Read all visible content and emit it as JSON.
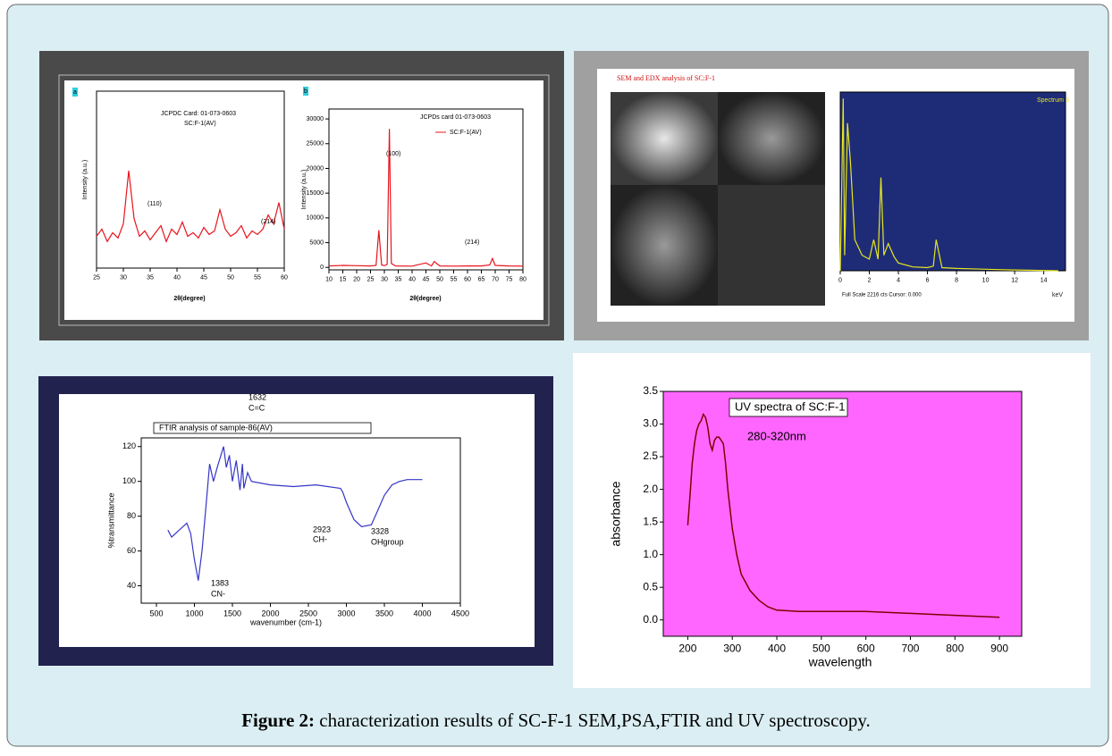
{
  "caption": {
    "label": "Figure 2:",
    "text": "characterization results of SC-F-1 SEM,PSA,FTIR and  UV spectroscopy."
  },
  "chart_data": [
    {
      "type": "line",
      "panel_label": "a",
      "xlabel": "2θ(degree)",
      "ylabel": "Intensity (a.u.)",
      "color": "#e8141c",
      "annotations": [
        "JCPDC Card: 01-073-0603",
        "SC:F-1(AV)",
        "(110)",
        "(214)"
      ],
      "x": [
        25,
        26,
        27,
        28,
        29,
        30,
        31,
        32,
        33,
        34,
        35,
        36,
        37,
        38,
        39,
        40,
        41,
        42,
        43,
        44,
        45,
        46,
        47,
        48,
        49,
        50,
        51,
        52,
        53,
        54,
        55,
        56,
        57,
        58,
        59,
        60
      ],
      "values": [
        18,
        22,
        15,
        20,
        17,
        25,
        55,
        28,
        18,
        21,
        16,
        20,
        24,
        15,
        22,
        19,
        26,
        18,
        20,
        17,
        23,
        19,
        21,
        33,
        22,
        18,
        20,
        24,
        17,
        21,
        19,
        22,
        30,
        25,
        37,
        22
      ],
      "xlim": [
        25,
        60
      ],
      "xticks": [
        25,
        30,
        35,
        40,
        45,
        50,
        55,
        60
      ],
      "ylim": [
        0,
        100
      ]
    },
    {
      "type": "line",
      "panel_label": "b",
      "xlabel": "2θ(degree)",
      "ylabel": "Intensity (a.u.)",
      "color": "#e8141c",
      "annotations": [
        "JCPDs card 01-073-0603",
        "(100)",
        "(214)"
      ],
      "series_name": "SC:F-1(AV)",
      "x": [
        10,
        15,
        20,
        25,
        27,
        28,
        29,
        30,
        31,
        31.8,
        32.5,
        34,
        40,
        45,
        47,
        48,
        50,
        55,
        60,
        65,
        68,
        69,
        70,
        75,
        80
      ],
      "values": [
        300,
        400,
        350,
        300,
        400,
        7500,
        500,
        350,
        600,
        28000,
        800,
        300,
        250,
        900,
        300,
        1200,
        300,
        250,
        300,
        300,
        500,
        1800,
        400,
        300,
        250
      ],
      "xlim": [
        10,
        80
      ],
      "xticks": [
        10,
        15,
        20,
        25,
        30,
        35,
        40,
        45,
        50,
        55,
        60,
        65,
        70,
        75,
        80
      ],
      "ylim": [
        -500,
        32000
      ],
      "yticks": [
        0,
        5000,
        10000,
        15000,
        20000,
        25000,
        30000
      ]
    },
    {
      "type": "line",
      "title": "SEM and EDX analysis of SC:F-1",
      "legend": "Spectrum 3",
      "footer": "Full Scale 2216 cts Cursor: 0.000",
      "xlabel": "keV",
      "color": "#e6e61e",
      "plot_background": "#1e2c78",
      "x": [
        0,
        0.2,
        0.3,
        0.5,
        0.7,
        1,
        1.5,
        2,
        2.3,
        2.6,
        2.8,
        3,
        3.3,
        3.7,
        4,
        5,
        6,
        6.4,
        6.6,
        7,
        8,
        10,
        12,
        15
      ],
      "values": [
        0,
        2216,
        200,
        1900,
        1400,
        400,
        200,
        150,
        400,
        150,
        1200,
        200,
        350,
        180,
        100,
        50,
        40,
        60,
        400,
        40,
        30,
        20,
        10,
        0
      ],
      "xlim": [
        0,
        15.5
      ],
      "xticks": [
        0,
        2,
        4,
        6,
        8,
        10,
        12,
        14
      ],
      "ylim": [
        0,
        2300
      ]
    },
    {
      "type": "line",
      "title": "FTIR analysis of sample-86(AV)",
      "xlabel": "wavenumber (cm-1)",
      "ylabel": "%transmittance",
      "color": "#3535c8",
      "annotations": [
        "1632",
        "C=C",
        "1383",
        "CN-",
        "2923",
        "CH-",
        "3328",
        "OHgroup"
      ],
      "x": [
        650,
        700,
        800,
        900,
        950,
        1000,
        1050,
        1100,
        1150,
        1200,
        1250,
        1300,
        1383,
        1420,
        1460,
        1500,
        1550,
        1600,
        1632,
        1650,
        1700,
        1750,
        2000,
        2300,
        2600,
        2923,
        2950,
        3000,
        3100,
        3200,
        3328,
        3400,
        3500,
        3600,
        3700,
        3800,
        4000
      ],
      "values": [
        72,
        68,
        72,
        76,
        70,
        55,
        43,
        60,
        85,
        110,
        100,
        108,
        120,
        108,
        115,
        100,
        112,
        95,
        110,
        96,
        105,
        100,
        98,
        97,
        98,
        96,
        94,
        88,
        78,
        74,
        75,
        82,
        92,
        98,
        100,
        101,
        101
      ],
      "xlim": [
        300,
        4500
      ],
      "xticks": [
        500,
        1000,
        1500,
        2000,
        2500,
        3000,
        3500,
        4000,
        4500
      ],
      "ylim": [
        30,
        125
      ],
      "yticks": [
        40,
        60,
        80,
        100,
        120
      ]
    },
    {
      "type": "line",
      "title": "UV spectra of SC:F-1",
      "xlabel": "wavelength",
      "ylabel": "absorbance",
      "color": "#800000",
      "plot_background": "#ff66ff",
      "annotations": [
        "280-320nm"
      ],
      "x": [
        200,
        205,
        210,
        215,
        220,
        225,
        230,
        235,
        240,
        245,
        250,
        255,
        260,
        265,
        270,
        275,
        280,
        285,
        290,
        300,
        310,
        320,
        340,
        360,
        380,
        400,
        450,
        500,
        600,
        700,
        800,
        900
      ],
      "values": [
        1.45,
        1.9,
        2.4,
        2.7,
        2.9,
        3.0,
        3.05,
        3.15,
        3.1,
        2.95,
        2.7,
        2.6,
        2.75,
        2.8,
        2.8,
        2.75,
        2.7,
        2.4,
        2.0,
        1.4,
        1.0,
        0.7,
        0.45,
        0.3,
        0.2,
        0.15,
        0.13,
        0.13,
        0.13,
        0.1,
        0.07,
        0.04
      ],
      "xlim": [
        145,
        950
      ],
      "xticks": [
        200,
        300,
        400,
        500,
        600,
        700,
        800,
        900
      ],
      "ylim": [
        -0.25,
        3.5
      ],
      "yticks": [
        {
          "value": 0,
          "label": "0.0"
        },
        0.5,
        {
          "value": 1,
          "label": "1.0"
        },
        1.5,
        {
          "value": 2,
          "label": "2.0"
        },
        2.5,
        {
          "value": 3,
          "label": "3.0"
        },
        3.5
      ]
    }
  ]
}
